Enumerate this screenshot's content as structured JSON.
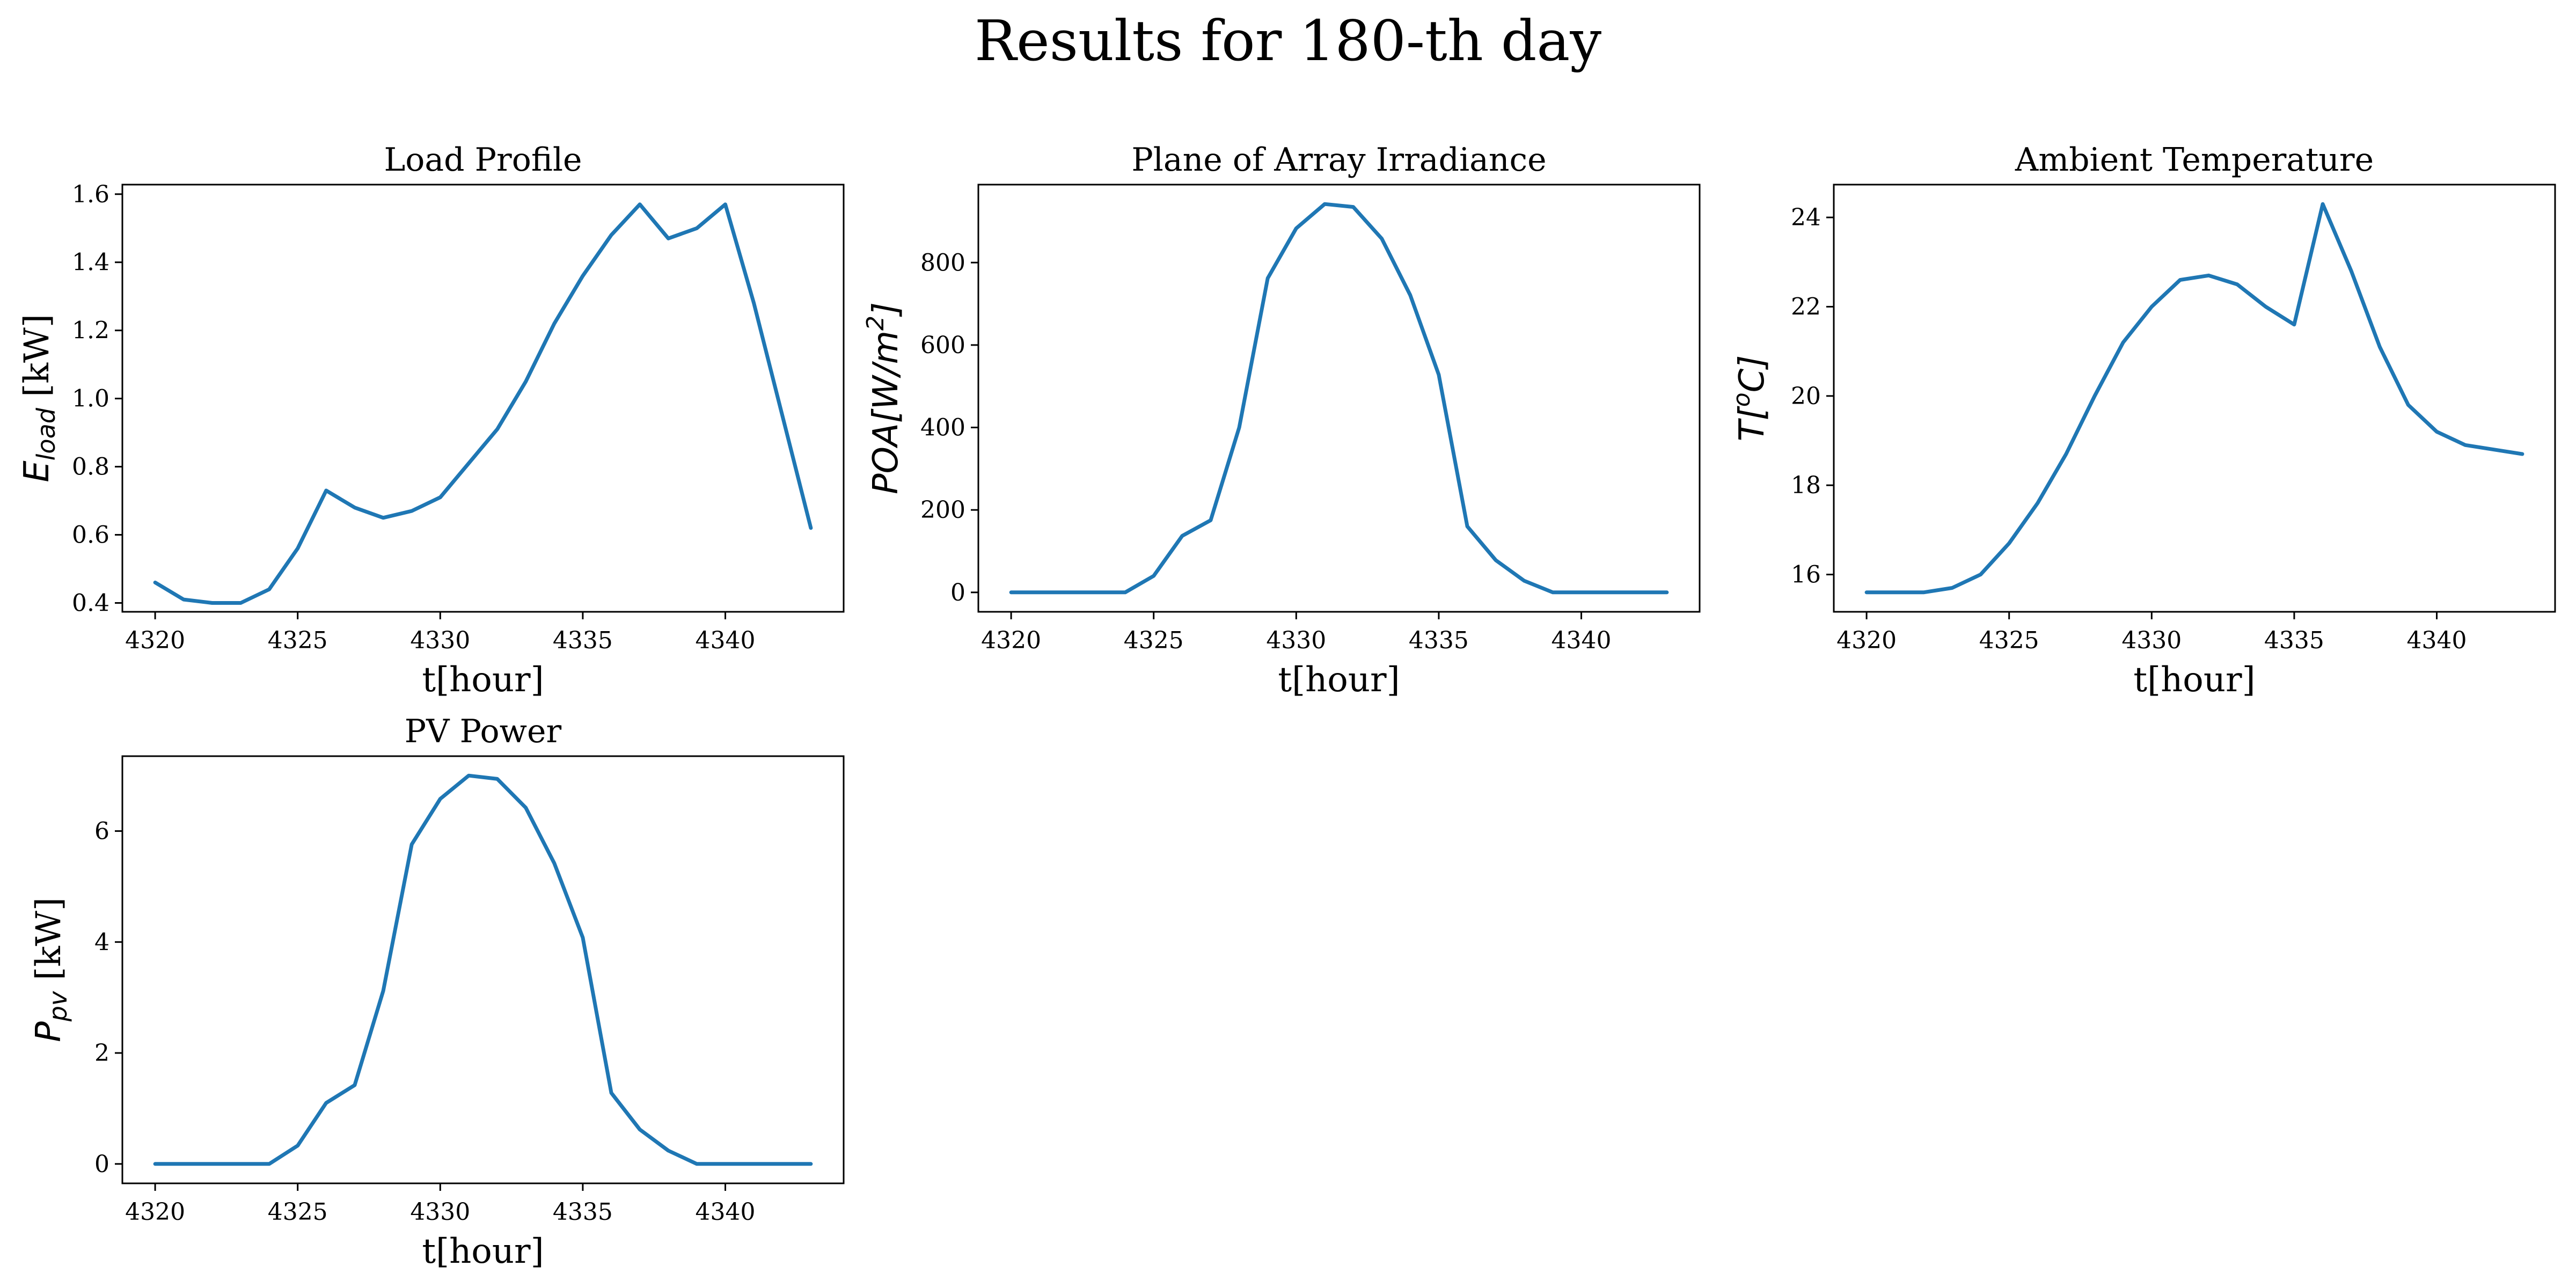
{
  "figure": {
    "suptitle": "Results for 180-th day"
  },
  "chart_data": [
    {
      "type": "line",
      "title": "Load Profile",
      "xlabel": "t[hour]",
      "ylabel": "E_load [kW]",
      "ylabel_parts": {
        "symbol": "E",
        "subscript": "load",
        "unit": " [kW]"
      },
      "x": [
        4320,
        4321,
        4322,
        4323,
        4324,
        4325,
        4326,
        4327,
        4328,
        4329,
        4330,
        4331,
        4332,
        4333,
        4334,
        4335,
        4336,
        4337,
        4338,
        4339,
        4340,
        4341,
        4342,
        4343
      ],
      "series": [
        {
          "values": [
            0.46,
            0.41,
            0.4,
            0.4,
            0.44,
            0.56,
            0.73,
            0.68,
            0.65,
            0.67,
            0.71,
            0.81,
            0.91,
            1.05,
            1.22,
            1.36,
            1.48,
            1.57,
            1.47,
            1.5,
            1.57,
            1.28,
            0.95,
            0.62
          ],
          "color": "#1f77b4"
        }
      ],
      "xlim": [
        4318.85,
        4344.15
      ],
      "ylim": [
        0.374,
        1.628
      ],
      "xticks": [
        4320,
        4325,
        4330,
        4335,
        4340
      ],
      "yticks": [
        0.4,
        0.6,
        0.8,
        1.0,
        1.2,
        1.4,
        1.6
      ],
      "ytick_labels": [
        "0.4",
        "0.6",
        "0.8",
        "1.0",
        "1.2",
        "1.4",
        "1.6"
      ],
      "grid": false
    },
    {
      "type": "line",
      "title": "Plane of Array Irradiance",
      "xlabel": "t[hour]",
      "ylabel": "POA[W/m²]",
      "ylabel_parts": {
        "symbol": "POA[W/m",
        "sup": "2",
        "tail": "]"
      },
      "x": [
        4320,
        4321,
        4322,
        4323,
        4324,
        4325,
        4326,
        4327,
        4328,
        4329,
        4330,
        4331,
        4332,
        4333,
        4334,
        4335,
        4336,
        4337,
        4338,
        4339,
        4340,
        4341,
        4342,
        4343
      ],
      "series": [
        {
          "values": [
            0,
            0,
            0,
            0,
            0,
            40,
            137,
            175,
            400,
            762,
            883,
            942,
            935,
            858,
            721,
            528,
            160,
            78,
            28,
            0,
            0,
            0,
            0,
            0
          ],
          "color": "#1f77b4"
        }
      ],
      "xlim": [
        4318.85,
        4344.15
      ],
      "ylim": [
        -47.1,
        989.1
      ],
      "xticks": [
        4320,
        4325,
        4330,
        4335,
        4340
      ],
      "yticks": [
        0,
        200,
        400,
        600,
        800
      ],
      "ytick_labels": [
        "0",
        "200",
        "400",
        "600",
        "800"
      ],
      "grid": false
    },
    {
      "type": "line",
      "title": "Ambient Temperature",
      "xlabel": "t[hour]",
      "ylabel": "T[°C]",
      "ylabel_parts": {
        "symbol": "T[",
        "sup": "o",
        "tail": "C]"
      },
      "x": [
        4320,
        4321,
        4322,
        4323,
        4324,
        4325,
        4326,
        4327,
        4328,
        4329,
        4330,
        4331,
        4332,
        4333,
        4334,
        4335,
        4336,
        4337,
        4338,
        4339,
        4340,
        4341,
        4342,
        4343
      ],
      "series": [
        {
          "values": [
            15.6,
            15.6,
            15.6,
            15.7,
            16.0,
            16.7,
            17.6,
            18.7,
            20.0,
            21.2,
            22.0,
            22.6,
            22.7,
            22.5,
            22.0,
            21.6,
            24.3,
            22.8,
            21.1,
            19.8,
            19.2,
            18.9,
            18.8,
            18.7
          ],
          "color": "#1f77b4"
        }
      ],
      "xlim": [
        4318.85,
        4344.15
      ],
      "ylim": [
        15.165,
        24.735
      ],
      "xticks": [
        4320,
        4325,
        4330,
        4335,
        4340
      ],
      "yticks": [
        16,
        18,
        20,
        22,
        24
      ],
      "ytick_labels": [
        "16",
        "18",
        "20",
        "22",
        "24"
      ],
      "grid": false
    },
    {
      "type": "line",
      "title": "PV Power",
      "xlabel": "t[hour]",
      "ylabel": "P_pv [kW]",
      "ylabel_parts": {
        "symbol": "P",
        "subscript": "pv",
        "unit": " [kW]"
      },
      "x": [
        4320,
        4321,
        4322,
        4323,
        4324,
        4325,
        4326,
        4327,
        4328,
        4329,
        4330,
        4331,
        4332,
        4333,
        4334,
        4335,
        4336,
        4337,
        4338,
        4339,
        4340,
        4341,
        4342,
        4343
      ],
      "series": [
        {
          "values": [
            0,
            0,
            0,
            0,
            0,
            0.33,
            1.1,
            1.42,
            3.12,
            5.76,
            6.58,
            7.0,
            6.94,
            6.42,
            5.42,
            4.08,
            1.28,
            0.62,
            0.24,
            0,
            0,
            0,
            0,
            0
          ],
          "color": "#1f77b4"
        }
      ],
      "xlim": [
        4318.85,
        4344.15
      ],
      "ylim": [
        -0.35,
        7.35
      ],
      "xticks": [
        4320,
        4325,
        4330,
        4335,
        4340
      ],
      "yticks": [
        0,
        2,
        4,
        6
      ],
      "ytick_labels": [
        "0",
        "2",
        "4",
        "6"
      ],
      "grid": false
    }
  ]
}
